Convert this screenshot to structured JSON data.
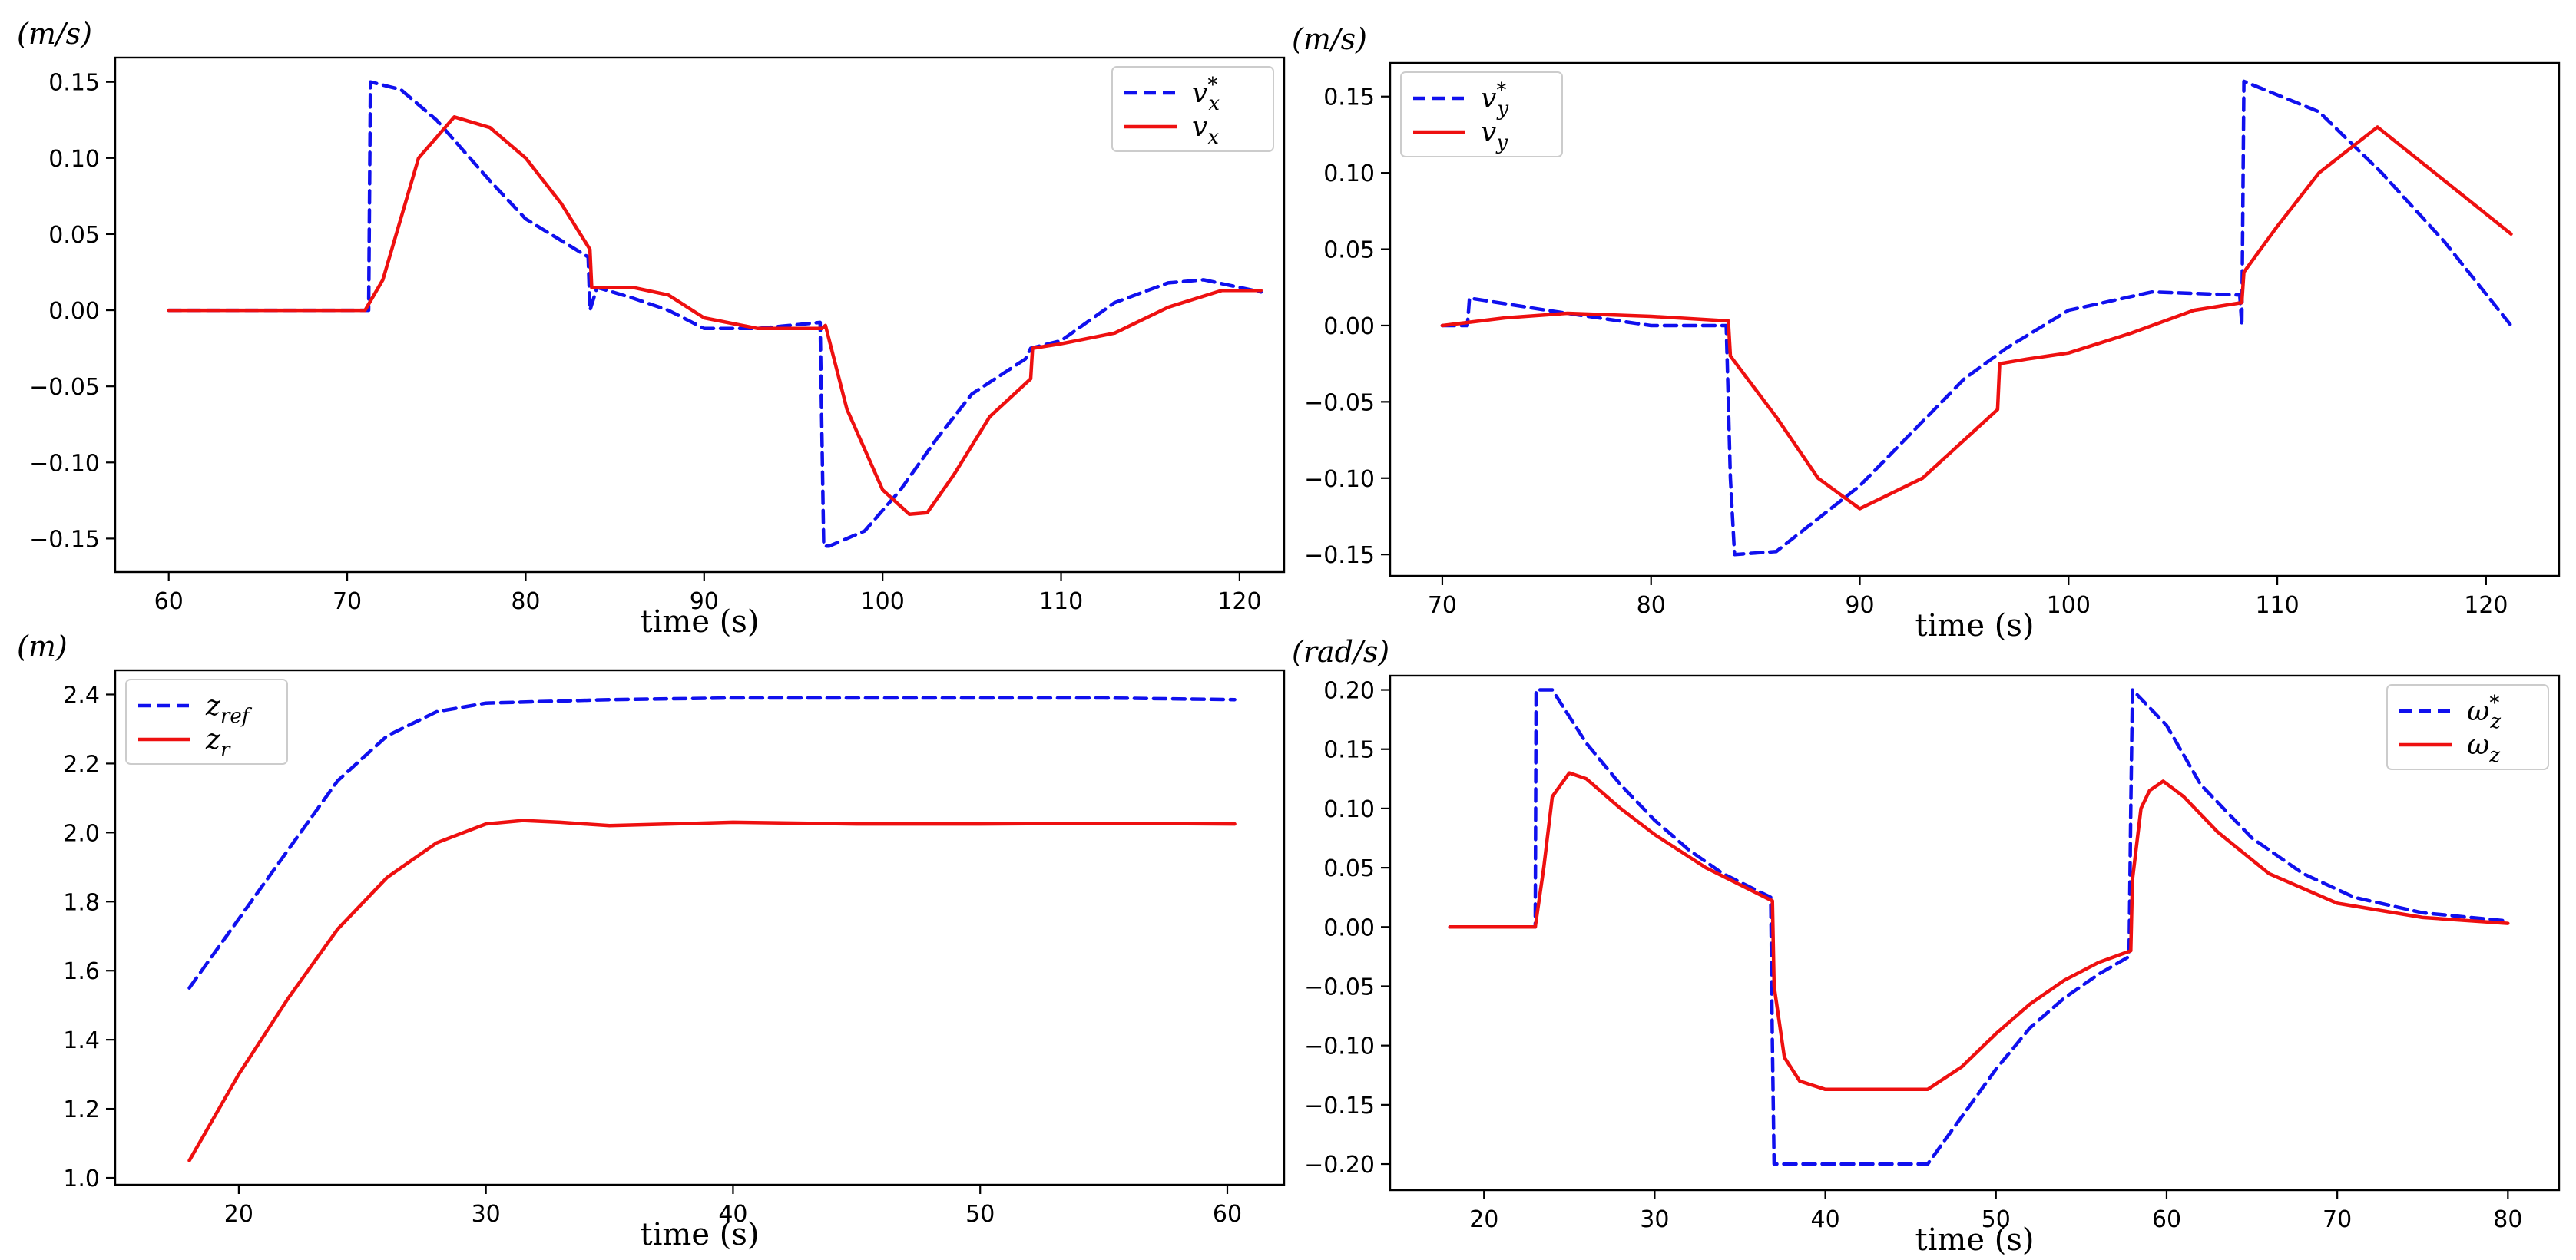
{
  "chart_data": [
    {
      "type": "line",
      "unit_label": "(m/s)",
      "xlabel": "time (s)",
      "xlim": [
        57,
        122.5
      ],
      "ylim": [
        -0.172,
        0.166
      ],
      "xticks": [
        60,
        70,
        80,
        90,
        100,
        110,
        120
      ],
      "yticks": [
        -0.15,
        -0.1,
        -0.05,
        0.0,
        0.05,
        0.1,
        0.15
      ],
      "ytick_labels": [
        "−0.15",
        "−0.10",
        "−0.05",
        "0.00",
        "0.05",
        "0.10",
        "0.15"
      ],
      "legend_position": "top-right",
      "series": [
        {
          "name": "v_x*",
          "legend_base": "v",
          "legend_sup": "*",
          "legend_sub": "x",
          "style": "dashed",
          "color": "#1010ee",
          "x": [
            60,
            71.2,
            71.3,
            73,
            75,
            78,
            80,
            83.5,
            83.6,
            84,
            86,
            88,
            90,
            93,
            96.5,
            96.7,
            97,
            99,
            101,
            103,
            105,
            108,
            108.3,
            110,
            113,
            116,
            118,
            121.2
          ],
          "y": [
            0.0,
            0.0,
            0.15,
            0.145,
            0.125,
            0.085,
            0.06,
            0.035,
            0.0,
            0.015,
            0.008,
            0.0,
            -0.012,
            -0.012,
            -0.008,
            -0.155,
            -0.155,
            -0.145,
            -0.118,
            -0.085,
            -0.055,
            -0.032,
            -0.025,
            -0.02,
            0.005,
            0.018,
            0.02,
            0.012
          ]
        },
        {
          "name": "v_x",
          "legend_base": "v",
          "legend_sup": "",
          "legend_sub": "x",
          "style": "solid",
          "color": "#ee1010",
          "x": [
            60,
            71,
            72,
            74,
            76,
            78,
            80,
            82,
            83.6,
            83.7,
            86,
            88,
            90,
            93,
            96.6,
            96.8,
            98,
            100,
            101.5,
            102.5,
            104,
            106,
            108.3,
            108.4,
            110,
            113,
            116,
            119,
            121.2
          ],
          "y": [
            0.0,
            0.0,
            0.02,
            0.1,
            0.127,
            0.12,
            0.1,
            0.07,
            0.04,
            0.015,
            0.015,
            0.01,
            -0.005,
            -0.012,
            -0.012,
            -0.01,
            -0.065,
            -0.118,
            -0.134,
            -0.133,
            -0.108,
            -0.07,
            -0.045,
            -0.025,
            -0.022,
            -0.015,
            0.002,
            0.013,
            0.013
          ]
        }
      ]
    },
    {
      "type": "line",
      "unit_label": "(m/s)",
      "xlabel": "time (s)",
      "xlim": [
        67.5,
        123.5
      ],
      "ylim": [
        -0.164,
        0.172
      ],
      "xticks": [
        70,
        80,
        90,
        100,
        110,
        120
      ],
      "yticks": [
        -0.15,
        -0.1,
        -0.05,
        0.0,
        0.05,
        0.1,
        0.15
      ],
      "ytick_labels": [
        "−0.15",
        "−0.10",
        "−0.05",
        "0.00",
        "0.05",
        "0.10",
        "0.15"
      ],
      "legend_position": "top-left",
      "series": [
        {
          "name": "v_y*",
          "legend_base": "v",
          "legend_sup": "*",
          "legend_sub": "y",
          "style": "dashed",
          "color": "#1010ee",
          "x": [
            70,
            71.2,
            71.3,
            75,
            80,
            83.6,
            83.8,
            84,
            86,
            90,
            95,
            97,
            100,
            104,
            108.2,
            108.3,
            108.4,
            112,
            115,
            118,
            121.2
          ],
          "y": [
            0.0,
            0.0,
            0.018,
            0.01,
            0.0,
            0.0,
            -0.1,
            -0.15,
            -0.148,
            -0.105,
            -0.035,
            -0.015,
            0.01,
            0.022,
            0.02,
            0.0,
            0.16,
            0.14,
            0.1,
            0.055,
            0.0
          ]
        },
        {
          "name": "v_y",
          "legend_base": "v",
          "legend_sup": "",
          "legend_sub": "y",
          "style": "solid",
          "color": "#ee1010",
          "x": [
            70,
            73,
            76,
            80,
            83.7,
            83.8,
            86,
            88,
            90,
            93,
            96.6,
            96.7,
            98,
            100,
            103,
            106,
            108.3,
            108.4,
            110,
            112,
            114.8,
            118,
            121.2
          ],
          "y": [
            0.0,
            0.005,
            0.008,
            0.006,
            0.003,
            -0.02,
            -0.06,
            -0.1,
            -0.12,
            -0.1,
            -0.055,
            -0.025,
            -0.022,
            -0.018,
            -0.005,
            0.01,
            0.015,
            0.035,
            0.065,
            0.1,
            0.13,
            0.095,
            0.06
          ]
        }
      ]
    },
    {
      "type": "line",
      "unit_label": "(m)",
      "xlabel": "time (s)",
      "xlim": [
        15,
        62.3
      ],
      "ylim": [
        0.98,
        2.47
      ],
      "xticks": [
        20,
        30,
        40,
        50,
        60
      ],
      "yticks": [
        1.0,
        1.2,
        1.4,
        1.6,
        1.8,
        2.0,
        2.2,
        2.4
      ],
      "ytick_labels": [
        "1.0",
        "1.2",
        "1.4",
        "1.6",
        "1.8",
        "2.0",
        "2.2",
        "2.4"
      ],
      "legend_position": "top-left",
      "series": [
        {
          "name": "z_ref",
          "legend_base": "z",
          "legend_sup": "",
          "legend_sub": "ref",
          "style": "dashed",
          "color": "#1010ee",
          "x": [
            18,
            20,
            22,
            24,
            26,
            28,
            30,
            35,
            40,
            50,
            55,
            60.3
          ],
          "y": [
            1.55,
            1.75,
            1.95,
            2.15,
            2.28,
            2.35,
            2.375,
            2.385,
            2.39,
            2.39,
            2.39,
            2.385
          ]
        },
        {
          "name": "z_r",
          "legend_base": "z",
          "legend_sup": "",
          "legend_sub": "r",
          "style": "solid",
          "color": "#ee1010",
          "x": [
            18,
            20,
            22,
            24,
            26,
            28,
            30,
            31.5,
            33,
            35,
            40,
            45,
            50,
            55,
            60.3
          ],
          "y": [
            1.05,
            1.3,
            1.52,
            1.72,
            1.87,
            1.97,
            2.025,
            2.035,
            2.03,
            2.02,
            2.03,
            2.025,
            2.025,
            2.027,
            2.025
          ]
        }
      ]
    },
    {
      "type": "line",
      "unit_label": "(rad/s)",
      "xlabel": "time (s)",
      "xlim": [
        14.5,
        83
      ],
      "ylim": [
        -0.222,
        0.212
      ],
      "xticks": [
        20,
        30,
        40,
        50,
        60,
        70,
        80
      ],
      "yticks": [
        -0.2,
        -0.15,
        -0.1,
        -0.05,
        0.0,
        0.05,
        0.1,
        0.15,
        0.2
      ],
      "ytick_labels": [
        "−0.20",
        "−0.15",
        "−0.10",
        "−0.05",
        "0.00",
        "0.05",
        "0.10",
        "0.15",
        "0.20"
      ],
      "legend_position": "top-right",
      "series": [
        {
          "name": "ω_z*",
          "legend_base": "ω",
          "legend_sup": "*",
          "legend_sub": "z",
          "style": "dashed",
          "color": "#1010ee",
          "x": [
            18,
            23,
            23.05,
            24,
            26,
            28,
            30,
            32,
            34,
            36.8,
            36.9,
            37,
            38,
            46,
            48,
            50,
            52,
            54,
            56,
            57.8,
            57.9,
            58,
            60,
            62,
            65,
            68,
            71,
            75,
            80
          ],
          "y": [
            0.0,
            0.0,
            0.2,
            0.2,
            0.155,
            0.12,
            0.09,
            0.065,
            0.045,
            0.025,
            -0.1,
            -0.2,
            -0.2,
            -0.2,
            -0.16,
            -0.12,
            -0.085,
            -0.06,
            -0.04,
            -0.025,
            0.1,
            0.2,
            0.17,
            0.12,
            0.075,
            0.045,
            0.025,
            0.012,
            0.005
          ]
        },
        {
          "name": "ω_z",
          "legend_base": "ω",
          "legend_sup": "",
          "legend_sub": "z",
          "style": "solid",
          "color": "#ee1010",
          "x": [
            18,
            23,
            23.5,
            24,
            25,
            26,
            28,
            30,
            33,
            36.9,
            37,
            37.6,
            38.5,
            40,
            42,
            46,
            48,
            50,
            52,
            54,
            56,
            57.9,
            58,
            58.5,
            59,
            59.8,
            61,
            63,
            66,
            70,
            75,
            80
          ],
          "y": [
            0.0,
            0.0,
            0.05,
            0.11,
            0.13,
            0.125,
            0.1,
            0.078,
            0.05,
            0.022,
            -0.05,
            -0.11,
            -0.13,
            -0.137,
            -0.137,
            -0.137,
            -0.118,
            -0.09,
            -0.065,
            -0.045,
            -0.03,
            -0.02,
            0.04,
            0.1,
            0.115,
            0.123,
            0.11,
            0.08,
            0.045,
            0.02,
            0.008,
            0.003
          ]
        }
      ]
    }
  ]
}
